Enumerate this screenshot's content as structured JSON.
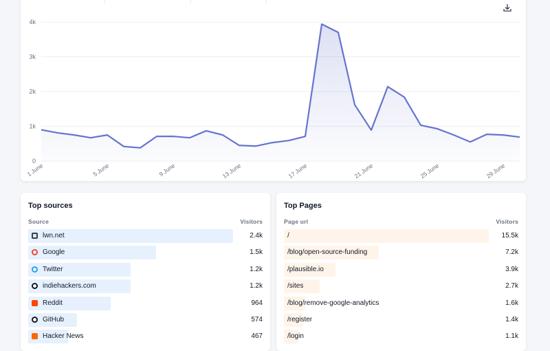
{
  "chart_data": {
    "type": "line",
    "categories": [
      "1 June",
      null,
      null,
      null,
      "5 June",
      null,
      null,
      null,
      "9 June",
      null,
      null,
      null,
      "13 June",
      null,
      null,
      null,
      "17 June",
      null,
      null,
      null,
      "21 June",
      null,
      null,
      null,
      "25 June",
      null,
      null,
      null,
      "29 June",
      null
    ],
    "series": [
      {
        "name": "Visitors",
        "color": "#6574cd",
        "values": [
          900,
          810,
          750,
          670,
          750,
          420,
          380,
          710,
          710,
          670,
          870,
          750,
          450,
          430,
          530,
          590,
          710,
          3940,
          3700,
          1620,
          890,
          2140,
          1840,
          1030,
          930,
          750,
          550,
          770,
          750,
          690
        ]
      }
    ],
    "ylim": [
      0,
      4000
    ],
    "yticks": [
      0,
      {
        "value": 1000,
        "label": "1k"
      },
      {
        "value": 2000,
        "label": "2k"
      },
      {
        "value": 3000,
        "label": "3k"
      },
      {
        "value": 4000,
        "label": "4k"
      }
    ],
    "grid": true
  },
  "top_sources": {
    "title": "Top sources",
    "columns": [
      "Source",
      "Visitors"
    ],
    "bar_color": "#e6f1fd",
    "rows": [
      {
        "label": "lwn.net",
        "visitors": 2400,
        "visitors_label": "2.4k"
      },
      {
        "label": "Google",
        "visitors": 1500,
        "visitors_label": "1.5k"
      },
      {
        "label": "Twitter",
        "visitors": 1200,
        "visitors_label": "1.2k"
      },
      {
        "label": "indiehackers.com",
        "visitors": 1200,
        "visitors_label": "1.2k"
      },
      {
        "label": "Reddit",
        "visitors": 964
      },
      {
        "label": "GitHub",
        "visitors": 574
      },
      {
        "label": "Hacker News",
        "visitors": 467
      }
    ]
  },
  "top_pages": {
    "title": "Top Pages",
    "columns": [
      "Page url",
      "Visitors"
    ],
    "bar_color": "#fff4ea",
    "rows": [
      {
        "label": "/",
        "visitors": 15500,
        "visitors_label": "15.5k"
      },
      {
        "label": "/blog/open-source-funding",
        "visitors": 7200,
        "visitors_label": "7.2k"
      },
      {
        "label": "/plausible.io",
        "visitors": 3900,
        "visitors_label": "3.9k"
      },
      {
        "label": "/sites",
        "visitors": 2700,
        "visitors_label": "2.7k"
      },
      {
        "label": "/blog/remove-google-analytics",
        "visitors": 1600,
        "visitors_label": "1.6k"
      },
      {
        "label": "/register",
        "visitors": 1400,
        "visitors_label": "1.4k"
      },
      {
        "label": "/login",
        "visitors": 1100,
        "visitors_label": "1.1k"
      }
    ]
  }
}
